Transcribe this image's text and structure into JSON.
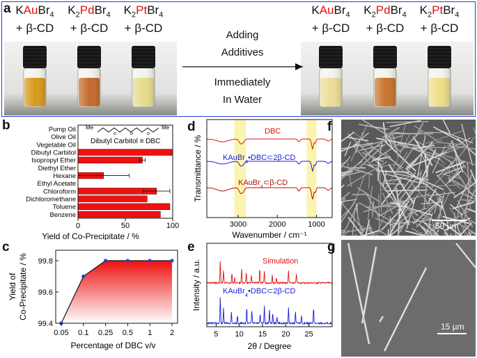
{
  "panel_a": {
    "letter": "a",
    "left_vials": [
      {
        "pre": "K",
        "metal": "Au",
        "post": "Br",
        "sub": "4",
        "additive": "+ β-CD",
        "liquid": "#d89a1c"
      },
      {
        "pre": "K",
        "sub0": "2",
        "metal": "Pd",
        "post": "Br",
        "sub": "4",
        "additive": "+ β-CD",
        "liquid": "#c56a2c"
      },
      {
        "pre": "K",
        "sub0": "2",
        "metal": "Pt",
        "post": "Br",
        "sub": "4",
        "additive": "+ β-CD",
        "liquid": "#e6dc8a"
      }
    ],
    "right_vials": [
      {
        "pre": "K",
        "metal": "Au",
        "post": "Br",
        "sub": "4",
        "additive": "+ β-CD",
        "liquid": "#eedd9a"
      },
      {
        "pre": "K",
        "sub0": "2",
        "metal": "Pd",
        "post": "Br",
        "sub": "4",
        "additive": "+ β-CD",
        "liquid": "#c8742e"
      },
      {
        "pre": "K",
        "sub0": "2",
        "metal": "Pt",
        "post": "Br",
        "sub": "4",
        "additive": "+ β-CD",
        "liquid": "#ecdf86"
      }
    ],
    "arrow_top_lines": [
      "Adding",
      "Additives"
    ],
    "arrow_bottom_lines": [
      "Immediately",
      "In Water"
    ]
  },
  "panel_b": {
    "letter": "b",
    "structure_label": "Dibutyl Carbitol ≡ DBC",
    "me_label": "Me"
  },
  "panel_c": {
    "letter": "c"
  },
  "panel_d": {
    "letter": "d",
    "labels": {
      "dbc": "DBC",
      "complex_pre": "KAuBr",
      "complex_sub": "4",
      "complex_post": "•DBC⊂2β-CD",
      "cd_pre": "KAuBr",
      "cd_sub": "4",
      "cd_post": "⊂β-CD"
    }
  },
  "panel_e": {
    "letter": "e",
    "labels": {
      "sim": "Simulation",
      "exp_pre": "KAuBr",
      "exp_sub": "4",
      "exp_post": "•DBC⊂2β-CD"
    }
  },
  "panel_f": {
    "letter": "f",
    "scale": "50 µm"
  },
  "panel_g": {
    "letter": "g",
    "scale": "15 µm"
  },
  "chart_data": [
    {
      "id": "b",
      "type": "bar",
      "orientation": "horizontal",
      "categories": [
        "Pump Oil",
        "Olive Oil",
        "Vegetable Oil",
        "Dibutyl Carbitol",
        "Isopropyl Ether",
        "Diethyl Ether",
        "Hexane",
        "Ethyl Acetate",
        "Chloroform",
        "Dichloromethane",
        "Toluene",
        "Benzene"
      ],
      "values": [
        0,
        0,
        0,
        100,
        68,
        0,
        27,
        0,
        83,
        73,
        97,
        87
      ],
      "errors": [
        0,
        0,
        0,
        0,
        3,
        0,
        27,
        0,
        14,
        0,
        0,
        0
      ],
      "xlabel": "Yield of Co-Precipitate / %",
      "xlim": [
        0,
        100
      ],
      "xticks": [
        0,
        50,
        100
      ],
      "color": "#ee1111"
    },
    {
      "id": "c",
      "type": "area",
      "x_labels": [
        "0.05",
        "0.1",
        "0.25",
        "0.5",
        "1",
        "2"
      ],
      "values": [
        99.4,
        99.7,
        99.8,
        99.8,
        99.8,
        99.8
      ],
      "xlabel": "Percentage of DBC v/v",
      "ylabel": "Yield of Co-Precipitate / %",
      "ylim": [
        99.4,
        99.8
      ],
      "yticks": [
        99.4,
        99.6,
        99.8
      ],
      "color": "#ee1111"
    },
    {
      "id": "d",
      "type": "line",
      "xlabel": "Wavenumber / cm⁻¹",
      "ylabel": "Transmittance / %",
      "xticks": [
        3000,
        2000,
        1000
      ],
      "xlim": [
        3800,
        600
      ],
      "highlight_bands": [
        [
          3100,
          2800
        ],
        [
          1250,
          1000
        ]
      ],
      "series": [
        {
          "name": "DBC",
          "color": "#e01010"
        },
        {
          "name": "KAuBr4•DBC⊂2β-CD",
          "color": "#1a1adc"
        },
        {
          "name": "KAuBr4⊂β-CD",
          "color": "#b01010"
        }
      ]
    },
    {
      "id": "e",
      "type": "line",
      "xlabel": "2θ / Degree",
      "ylabel": "Intensity / a.u.",
      "xticks": [
        5,
        10,
        15,
        20,
        25
      ],
      "xlim": [
        3,
        30
      ],
      "series": [
        {
          "name": "Simulation",
          "color": "#e01010",
          "peaks": [
            5.9,
            6.6,
            8.4,
            9.0,
            10.5,
            11.5,
            12.6,
            14.4,
            15.4,
            17.1,
            18.0,
            20.6,
            22.3
          ]
        },
        {
          "name": "KAuBr4•DBC⊂2β-CD",
          "color": "#1a1adc",
          "peaks": [
            5.9,
            6.6,
            8.3,
            9.6,
            11.6,
            12.7,
            14.5,
            15.4,
            16.5,
            17.2,
            18.1,
            20.6,
            22.1,
            23.4,
            26.0
          ]
        }
      ]
    }
  ]
}
